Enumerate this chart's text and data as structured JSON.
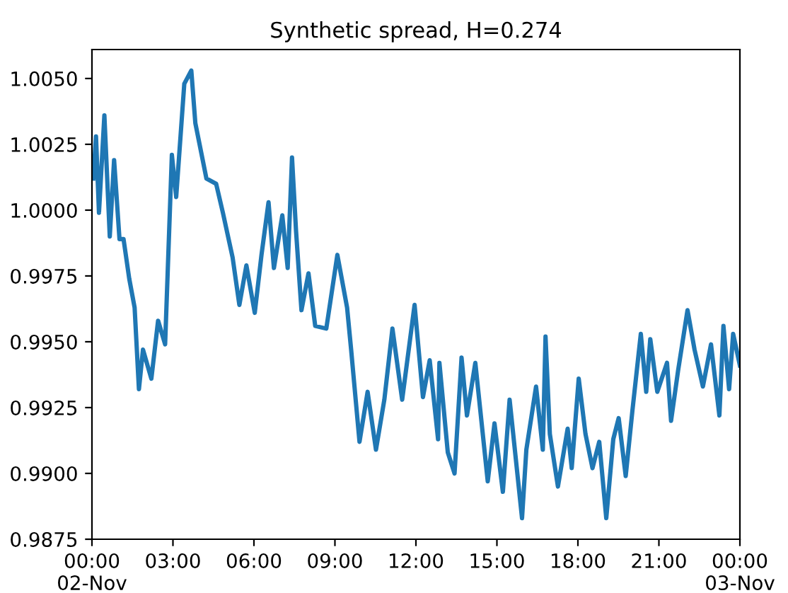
{
  "chart_data": {
    "type": "line",
    "title": "Synthetic spread, H=0.274",
    "series": [
      {
        "color": "#1f77b4",
        "x": [
          0.05,
          0.15,
          0.26,
          0.46,
          0.66,
          0.82,
          1.02,
          1.17,
          1.38,
          1.58,
          1.74,
          1.89,
          2.2,
          2.45,
          2.71,
          2.96,
          3.12,
          3.42,
          3.68,
          3.83,
          4.24,
          4.6,
          4.85,
          5.21,
          5.46,
          5.72,
          6.03,
          6.28,
          6.54,
          6.74,
          7.05,
          7.25,
          7.41,
          7.56,
          7.76,
          8.02,
          8.27,
          8.68,
          9.09,
          9.45,
          9.6,
          9.91,
          10.21,
          10.52,
          10.83,
          11.13,
          11.49,
          11.95,
          12.26,
          12.51,
          12.82,
          12.87,
          13.18,
          13.43,
          13.69,
          13.89,
          14.2,
          14.66,
          14.91,
          15.22,
          15.47,
          15.93,
          16.09,
          16.45,
          16.7,
          16.8,
          16.96,
          17.26,
          17.62,
          17.77,
          18.03,
          18.28,
          18.54,
          18.79,
          19.05,
          19.31,
          19.51,
          19.77,
          20.02,
          20.33,
          20.53,
          20.68,
          20.94,
          21.3,
          21.45,
          21.71,
          22.06,
          22.32,
          22.63,
          22.93,
          23.24,
          23.39,
          23.6,
          23.75,
          24.0
        ],
        "values": [
          1.0012,
          1.0028,
          0.9999,
          1.0036,
          0.999,
          1.0019,
          0.9989,
          0.9989,
          0.9974,
          0.9963,
          0.9932,
          0.9947,
          0.9936,
          0.9958,
          0.9949,
          1.0021,
          1.0005,
          1.0048,
          1.0053,
          1.0033,
          1.0012,
          1.001,
          0.9999,
          0.9982,
          0.9964,
          0.9979,
          0.9961,
          0.9983,
          1.0003,
          0.9978,
          0.9998,
          0.9978,
          1.002,
          0.9992,
          0.9962,
          0.9976,
          0.9956,
          0.9955,
          0.9983,
          0.9963,
          0.9947,
          0.9912,
          0.9931,
          0.9909,
          0.9928,
          0.9955,
          0.9928,
          0.9964,
          0.9929,
          0.9943,
          0.9913,
          0.9942,
          0.9908,
          0.99,
          0.9944,
          0.9922,
          0.9942,
          0.9897,
          0.9919,
          0.9893,
          0.9928,
          0.9883,
          0.9909,
          0.9933,
          0.9909,
          0.9952,
          0.9915,
          0.9895,
          0.9917,
          0.9902,
          0.9936,
          0.9915,
          0.9902,
          0.9912,
          0.9883,
          0.9913,
          0.9921,
          0.9899,
          0.9924,
          0.9953,
          0.9931,
          0.9951,
          0.9931,
          0.9942,
          0.992,
          0.9939,
          0.9962,
          0.9947,
          0.9933,
          0.9949,
          0.9922,
          0.9956,
          0.9932,
          0.9953,
          0.9941
        ]
      }
    ],
    "xlim": [
      0,
      24
    ],
    "xticks": [
      {
        "value": 0,
        "label": "00:00\n02-Nov"
      },
      {
        "value": 3,
        "label": "03:00"
      },
      {
        "value": 6,
        "label": "06:00"
      },
      {
        "value": 9,
        "label": "09:00"
      },
      {
        "value": 12,
        "label": "12:00"
      },
      {
        "value": 15,
        "label": "15:00"
      },
      {
        "value": 18,
        "label": "18:00"
      },
      {
        "value": 21,
        "label": "21:00"
      },
      {
        "value": 24,
        "label": "00:00\n03-Nov"
      }
    ],
    "ylim": [
      0.9875,
      1.0061
    ],
    "yticks": [
      {
        "value": 0.9875,
        "label": "0.9875"
      },
      {
        "value": 0.99,
        "label": "0.9900"
      },
      {
        "value": 0.9925,
        "label": "0.9925"
      },
      {
        "value": 0.995,
        "label": "0.9950"
      },
      {
        "value": 0.9975,
        "label": "0.9975"
      },
      {
        "value": 1.0,
        "label": "1.0000"
      },
      {
        "value": 1.0025,
        "label": "1.0025"
      },
      {
        "value": 1.005,
        "label": "1.0050"
      }
    ],
    "grid": false,
    "legend": false,
    "marker": "none",
    "line_style": "solid"
  }
}
